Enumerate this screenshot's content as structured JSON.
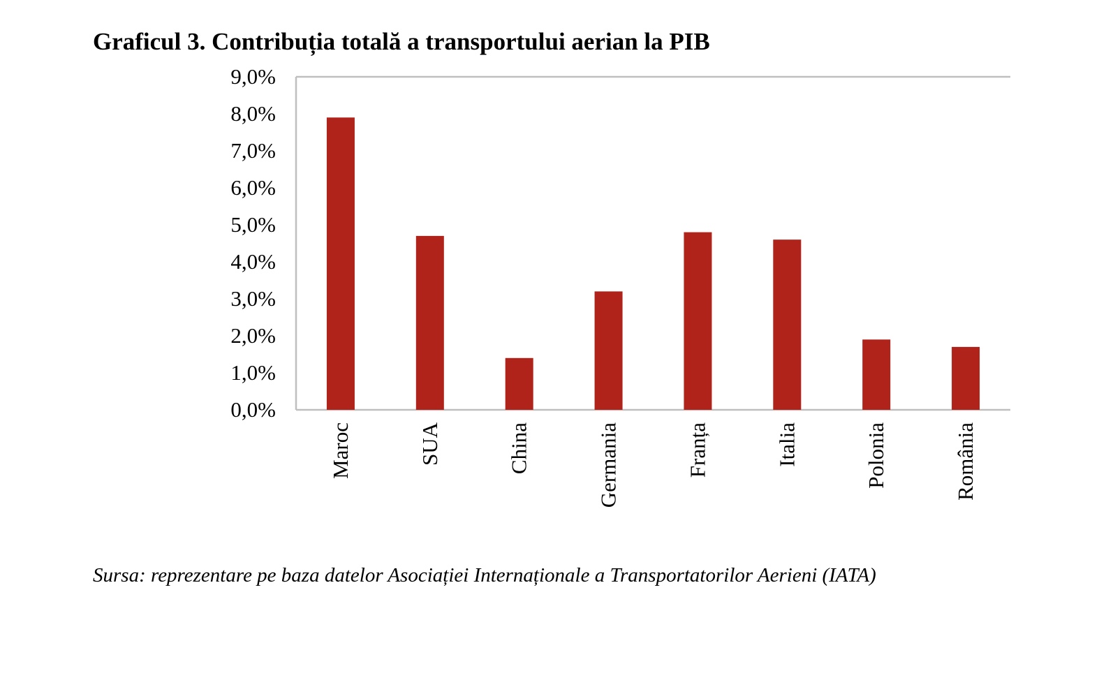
{
  "chart_data": {
    "type": "bar",
    "title": "Graficul 3. Contribuția totală a transportului aerian la PIB",
    "categories": [
      "Maroc",
      "SUA",
      "China",
      "Germania",
      "Franța",
      "Italia",
      "Polonia",
      "România"
    ],
    "values": [
      7.9,
      4.7,
      1.4,
      3.2,
      4.8,
      4.6,
      1.9,
      1.7
    ],
    "unit": "%",
    "ylim": [
      0,
      9
    ],
    "yticks": [
      "0,0%",
      "1,0%",
      "2,0%",
      "3,0%",
      "4,0%",
      "5,0%",
      "6,0%",
      "7,0%",
      "8,0%",
      "9,0%"
    ],
    "xlabel": "",
    "ylabel": "",
    "grid": false,
    "bar_color": "#b0231a",
    "axis_color": "#bfbfbf",
    "source": "Sursa: reprezentare pe baza datelor Asociației Internaționale a Transportatorilor Aerieni (IATA)"
  }
}
